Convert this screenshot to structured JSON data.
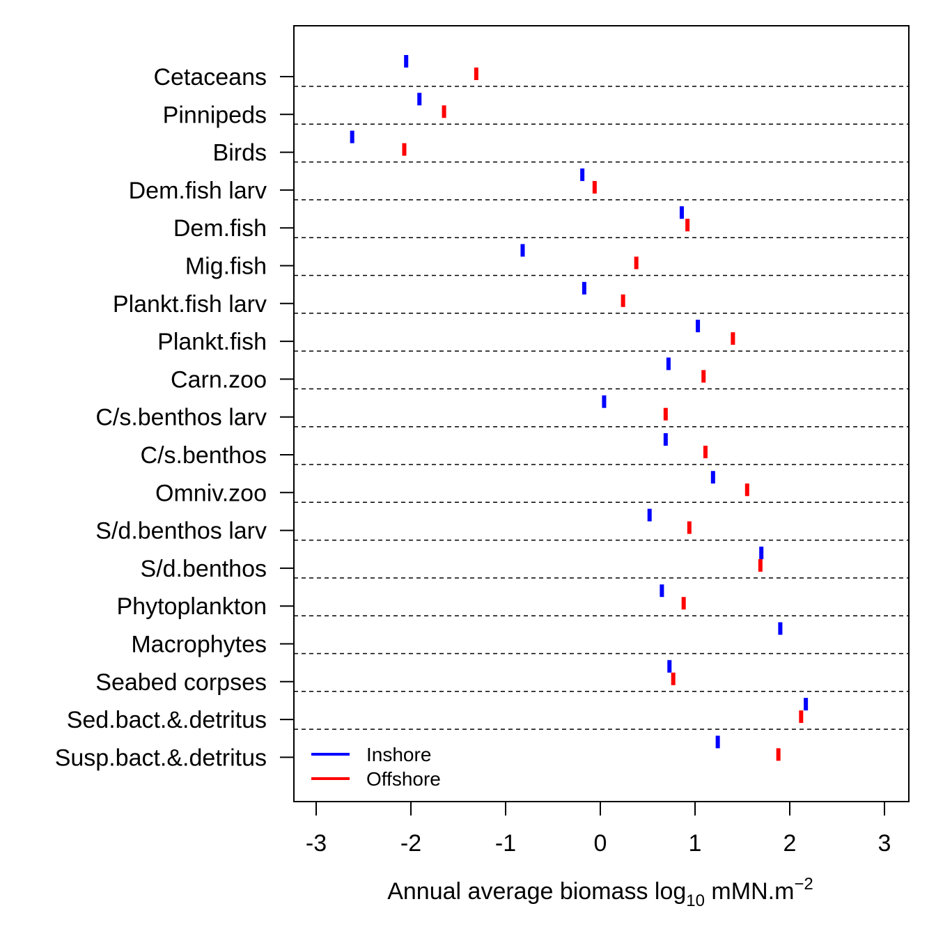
{
  "chart_data": {
    "type": "scatter",
    "title": "",
    "xlabel_main": "Annual average biomass log",
    "xlabel_sub": "10",
    "xlabel_unit": " mMN.m",
    "xlabel_sup": "−2",
    "ylabel": "",
    "xlim": [
      -3.25,
      3.25
    ],
    "x_ticks": [
      -3,
      -2,
      -1,
      0,
      1,
      2,
      3
    ],
    "x_tick_labels": [
      "-3",
      "-2",
      "-1",
      "0",
      "1",
      "2",
      "3"
    ],
    "categories": [
      "Cetaceans",
      "Pinnipeds",
      "Birds",
      "Dem.fish larv",
      "Dem.fish",
      "Mig.fish",
      "Plankt.fish larv",
      "Plankt.fish",
      "Carn.zoo",
      "C/s.benthos larv",
      "C/s.benthos",
      "Omniv.zoo",
      "S/d.benthos larv",
      "S/d.benthos",
      "Phytoplankton",
      "Macrophytes",
      "Seabed corpses",
      "Sed.bact.&.detritus",
      "Susp.bact.&.detritus"
    ],
    "series": [
      {
        "name": "Inshore",
        "color": "#0000ff",
        "values": [
          -2.05,
          -1.91,
          -2.62,
          -0.19,
          0.86,
          -0.82,
          -0.17,
          1.03,
          0.72,
          0.04,
          0.69,
          1.19,
          0.52,
          1.7,
          0.65,
          1.9,
          0.73,
          2.17,
          1.24
        ]
      },
      {
        "name": "Offshore",
        "color": "#ff0000",
        "values": [
          -1.31,
          -1.65,
          -2.07,
          -0.06,
          0.92,
          0.38,
          0.24,
          1.4,
          1.09,
          0.69,
          1.11,
          1.55,
          0.94,
          1.69,
          0.88,
          null,
          0.77,
          2.12,
          1.88
        ]
      }
    ],
    "legend": {
      "position": "bottom-left",
      "entries": [
        {
          "label": "Inshore",
          "color": "#0000ff"
        },
        {
          "label": "Offshore",
          "color": "#ff0000"
        }
      ]
    }
  }
}
